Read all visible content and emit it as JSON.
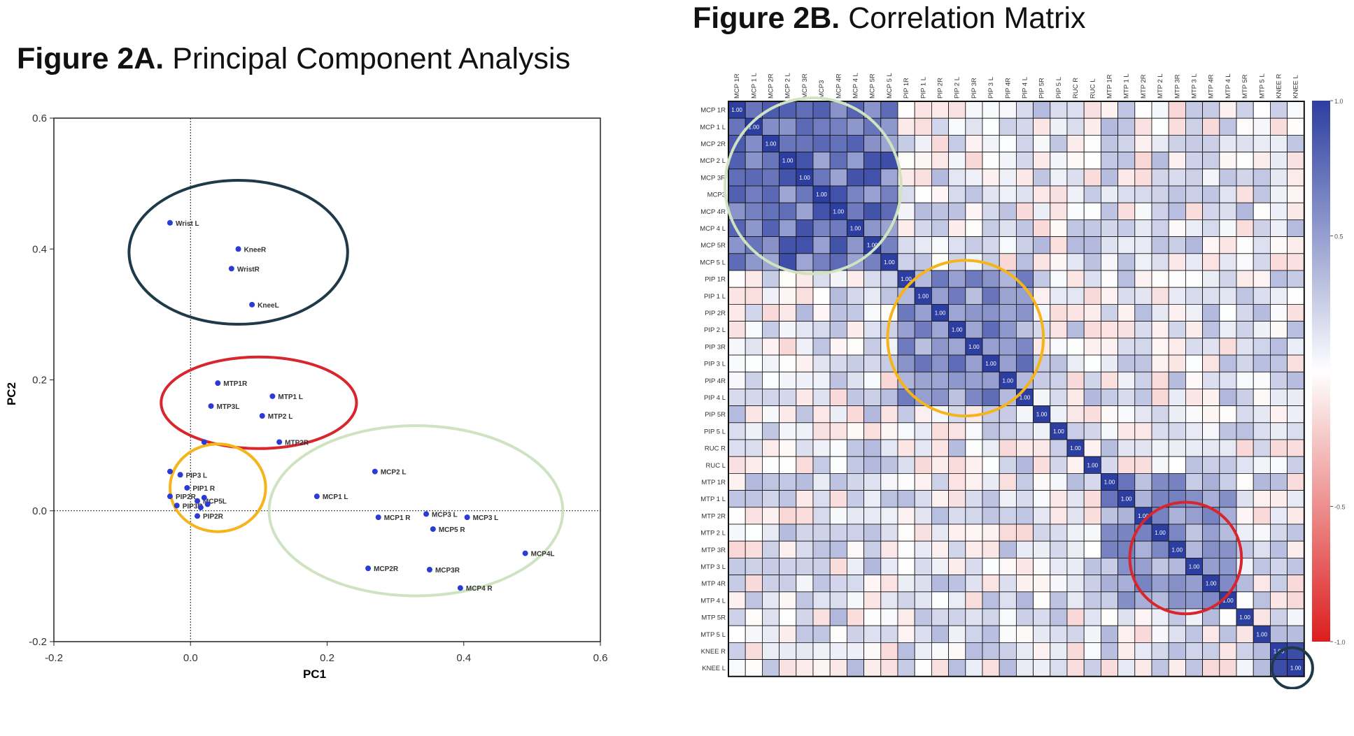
{
  "figures": {
    "a": {
      "label": "Figure 2A.",
      "title": "Principal Component Analysis"
    },
    "b": {
      "label": "Figure 2B.",
      "title": "Correlation Matrix"
    }
  },
  "chart_data": [
    {
      "type": "scatter",
      "title": "Principal Component Analysis",
      "xlabel": "PC1",
      "ylabel": "PC2",
      "xlim": [
        -0.2,
        0.6
      ],
      "ylim": [
        -0.2,
        0.6
      ],
      "xticks": [
        "-0.2",
        "0.0",
        "0.2",
        "0.4",
        "0.6"
      ],
      "yticks": [
        "-0.2",
        "0.0",
        "0.2",
        "0.4",
        "0.6"
      ],
      "points": [
        {
          "label": "Wrist L",
          "x": -0.03,
          "y": 0.44
        },
        {
          "label": "KneeR",
          "x": 0.07,
          "y": 0.4
        },
        {
          "label": "WristR",
          "x": 0.06,
          "y": 0.37
        },
        {
          "label": "KneeL",
          "x": 0.09,
          "y": 0.315
        },
        {
          "label": "MTP1R",
          "x": 0.04,
          "y": 0.195
        },
        {
          "label": "MTP1 L",
          "x": 0.12,
          "y": 0.175
        },
        {
          "label": "MTP3L",
          "x": 0.03,
          "y": 0.16
        },
        {
          "label": "MTP2 L",
          "x": 0.105,
          "y": 0.145
        },
        {
          "label": "MTP2R",
          "x": 0.13,
          "y": 0.105
        },
        {
          "label": "",
          "x": 0.02,
          "y": 0.105
        },
        {
          "label": "",
          "x": -0.03,
          "y": 0.06
        },
        {
          "label": "PIP3 L",
          "x": -0.015,
          "y": 0.055
        },
        {
          "label": "PIP1 R",
          "x": -0.005,
          "y": 0.035
        },
        {
          "label": "PIP2R",
          "x": -0.03,
          "y": 0.022
        },
        {
          "label": "PIP3R",
          "x": -0.02,
          "y": 0.008
        },
        {
          "label": "MCP5L",
          "x": 0.01,
          "y": 0.015
        },
        {
          "label": "",
          "x": 0.02,
          "y": 0.02
        },
        {
          "label": "",
          "x": 0.025,
          "y": 0.01
        },
        {
          "label": "",
          "x": 0.015,
          "y": 0.005
        },
        {
          "label": "PIP2R",
          "x": 0.01,
          "y": -0.008
        },
        {
          "label": "MCP2 L",
          "x": 0.27,
          "y": 0.06
        },
        {
          "label": "MCP1 L",
          "x": 0.185,
          "y": 0.022
        },
        {
          "label": "MCP1 R",
          "x": 0.275,
          "y": -0.01
        },
        {
          "label": "MCP3 L",
          "x": 0.345,
          "y": -0.005
        },
        {
          "label": "MCP3 L",
          "x": 0.405,
          "y": -0.01
        },
        {
          "label": "MCP5 R",
          "x": 0.355,
          "y": -0.028
        },
        {
          "label": "MCP4L",
          "x": 0.49,
          "y": -0.065
        },
        {
          "label": "MCP2R",
          "x": 0.26,
          "y": -0.088
        },
        {
          "label": "MCP3R",
          "x": 0.35,
          "y": -0.09
        },
        {
          "label": "MCP4 R",
          "x": 0.395,
          "y": -0.118
        }
      ],
      "groups": [
        {
          "color": "#1e3a48",
          "cx": 0.07,
          "cy": 0.395,
          "rx": 0.16,
          "ry": 0.11
        },
        {
          "color": "#d8262c",
          "cx": 0.1,
          "cy": 0.165,
          "rx": 0.143,
          "ry": 0.07
        },
        {
          "color": "#f4b41a",
          "cx": 0.04,
          "cy": 0.035,
          "rx": 0.07,
          "ry": 0.067
        },
        {
          "color": "#cfe3c0",
          "cx": 0.33,
          "cy": 0.0,
          "rx": 0.215,
          "ry": 0.13
        }
      ],
      "point_color": "#2b3bd6"
    },
    {
      "type": "heatmap",
      "title": "Correlation Matrix",
      "labels": [
        "MCP 1R",
        "MCP 1 L",
        "MCP 2R",
        "MCP 2 L",
        "MCP 3R",
        "MCP3",
        "MCP 4R",
        "MCP 4 L",
        "MCP 5R",
        "MCP 5 L",
        "PIP 1R",
        "PIP 1 L",
        "PIP 2R",
        "PIP 2 L",
        "PIP 3R",
        "PIP 3 L",
        "PIP 4R",
        "PIP 4 L",
        "PIP 5R",
        "PIP 5 L",
        "RUC R",
        "RUC L",
        "MTP 1R",
        "MTP 1 L",
        "MTP 2R",
        "MTP 2 L",
        "MTP 3R",
        "MTP 3 L",
        "MTP 4R",
        "MTP 4 L",
        "MTP 5R",
        "MTP 5 L",
        "KNEE R",
        "KNEE L"
      ],
      "colorbar": {
        "min": -1.0,
        "max": 1.0,
        "ticks": [
          "1.0",
          "0.5",
          "-0.5",
          "-1.0"
        ]
      },
      "diagonal": "1.00",
      "highlight_circles": [
        {
          "color": "#cfe3c0",
          "row": 4.5,
          "col": 4.5,
          "r": 5.2
        },
        {
          "color": "#f4b41a",
          "row": 13.5,
          "col": 13.5,
          "r": 4.6
        },
        {
          "color": "#d8262c",
          "row": 26.5,
          "col": 26.5,
          "r": 3.3
        },
        {
          "color": "#1e3a48",
          "row": 33.0,
          "col": 32.8,
          "r": 1.2
        }
      ],
      "blocks": [
        {
          "start": 0,
          "end": 9,
          "value": 0.75
        },
        {
          "start": 10,
          "end": 17,
          "value": 0.6
        },
        {
          "start": 22,
          "end": 29,
          "value": 0.55
        },
        {
          "start": 32,
          "end": 33,
          "value": 0.9
        }
      ]
    }
  ]
}
